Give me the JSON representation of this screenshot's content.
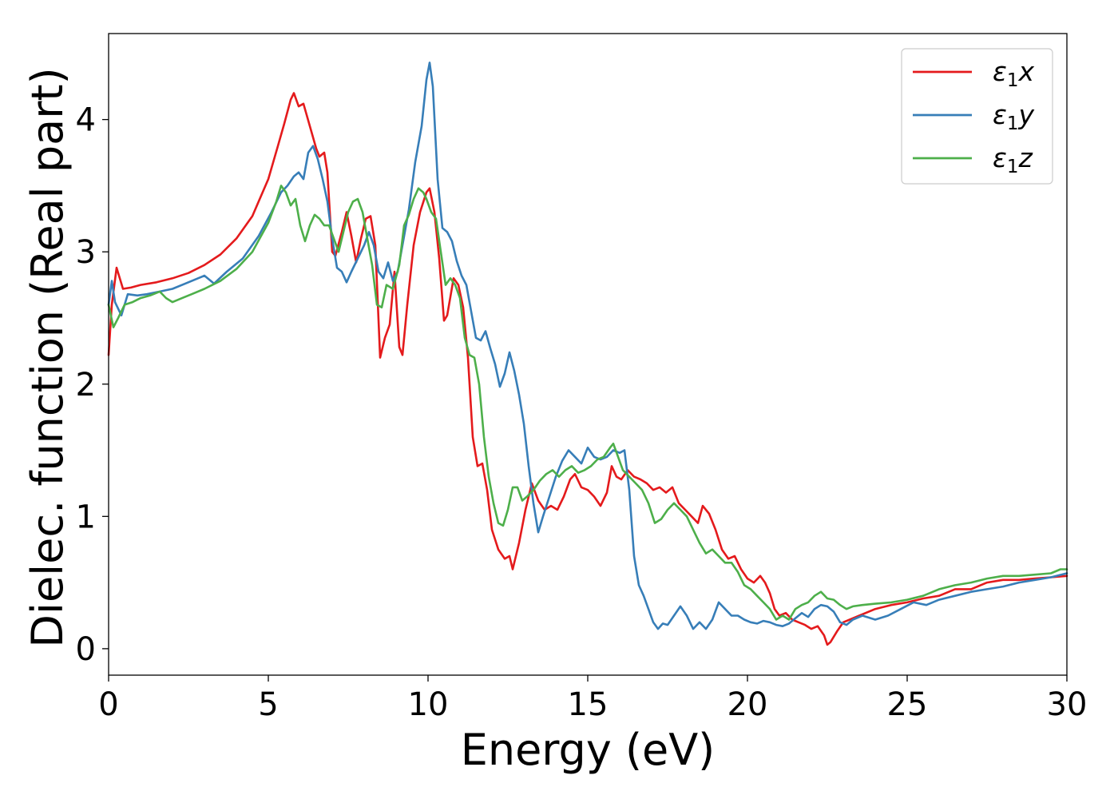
{
  "chart_data": {
    "type": "line",
    "title": "",
    "xlabel": "Energy (eV)",
    "ylabel": "Dielec. function (Real part)",
    "xlim": [
      0,
      30
    ],
    "ylim": [
      -0.2,
      4.65
    ],
    "xticks": [
      0,
      5,
      10,
      15,
      20,
      25,
      30
    ],
    "yticks": [
      0,
      1,
      2,
      3,
      4
    ],
    "grid": false,
    "legend_position": "top-right",
    "series": [
      {
        "name": "ε1x",
        "legend": {
          "symbol": "ε",
          "sub": "1",
          "var": "x"
        },
        "color": "#e41a1c",
        "x": [
          0,
          0.1,
          0.25,
          0.45,
          0.7,
          1,
          1.5,
          2,
          2.5,
          3,
          3.5,
          4,
          4.5,
          5,
          5.3,
          5.5,
          5.7,
          5.8,
          5.95,
          6.1,
          6.3,
          6.5,
          6.6,
          6.75,
          6.85,
          7.0,
          7.1,
          7.3,
          7.45,
          7.6,
          7.75,
          7.9,
          8.05,
          8.2,
          8.35,
          8.5,
          8.65,
          8.8,
          8.95,
          9.1,
          9.2,
          9.35,
          9.55,
          9.75,
          9.95,
          10.05,
          10.2,
          10.35,
          10.5,
          10.6,
          10.8,
          10.95,
          11.1,
          11.25,
          11.4,
          11.55,
          11.7,
          11.85,
          12.0,
          12.2,
          12.4,
          12.55,
          12.65,
          12.85,
          13.05,
          13.25,
          13.45,
          13.65,
          13.85,
          14.05,
          14.25,
          14.45,
          14.6,
          14.8,
          15.0,
          15.2,
          15.4,
          15.6,
          15.75,
          15.9,
          16.05,
          16.25,
          16.45,
          16.65,
          16.85,
          17.05,
          17.25,
          17.45,
          17.65,
          17.85,
          18.05,
          18.25,
          18.45,
          18.6,
          18.8,
          19.0,
          19.2,
          19.4,
          19.6,
          19.8,
          20.0,
          20.2,
          20.4,
          20.55,
          20.7,
          20.85,
          21.0,
          21.2,
          21.4,
          21.6,
          21.8,
          22.0,
          22.2,
          22.4,
          22.5,
          22.6,
          22.8,
          23.0,
          23.2,
          23.5,
          24.0,
          24.5,
          25.0,
          25.5,
          26.0,
          26.5,
          27.0,
          27.5,
          28.0,
          28.5,
          29.0,
          29.5,
          30.0
        ],
        "y": [
          2.22,
          2.6,
          2.88,
          2.72,
          2.73,
          2.75,
          2.77,
          2.8,
          2.84,
          2.9,
          2.98,
          3.1,
          3.27,
          3.55,
          3.8,
          3.97,
          4.15,
          4.2,
          4.1,
          4.12,
          3.95,
          3.78,
          3.72,
          3.75,
          3.6,
          3.0,
          2.97,
          3.15,
          3.3,
          3.12,
          2.92,
          3.1,
          3.25,
          3.27,
          3.05,
          2.2,
          2.35,
          2.45,
          2.85,
          2.28,
          2.22,
          2.6,
          3.05,
          3.3,
          3.45,
          3.48,
          3.3,
          2.95,
          2.48,
          2.52,
          2.8,
          2.75,
          2.58,
          2.2,
          1.6,
          1.38,
          1.4,
          1.2,
          0.9,
          0.75,
          0.68,
          0.7,
          0.6,
          0.8,
          1.05,
          1.25,
          1.12,
          1.05,
          1.08,
          1.05,
          1.15,
          1.28,
          1.32,
          1.22,
          1.2,
          1.15,
          1.08,
          1.18,
          1.38,
          1.3,
          1.28,
          1.35,
          1.3,
          1.28,
          1.25,
          1.2,
          1.22,
          1.18,
          1.22,
          1.1,
          1.05,
          1.0,
          0.95,
          1.08,
          1.02,
          0.9,
          0.75,
          0.68,
          0.7,
          0.6,
          0.53,
          0.5,
          0.55,
          0.5,
          0.42,
          0.3,
          0.25,
          0.27,
          0.22,
          0.2,
          0.18,
          0.15,
          0.17,
          0.1,
          0.03,
          0.05,
          0.13,
          0.2,
          0.22,
          0.25,
          0.3,
          0.33,
          0.35,
          0.38,
          0.4,
          0.45,
          0.45,
          0.5,
          0.52,
          0.52,
          0.53,
          0.54,
          0.55
        ]
      },
      {
        "name": "ε1y",
        "legend": {
          "symbol": "ε",
          "sub": "1",
          "var": "y"
        },
        "color": "#377eb8",
        "x": [
          0,
          0.1,
          0.2,
          0.4,
          0.6,
          0.9,
          1.2,
          1.6,
          2.0,
          2.4,
          2.8,
          3.0,
          3.3,
          3.7,
          4.2,
          4.7,
          5.1,
          5.4,
          5.6,
          5.8,
          5.95,
          6.1,
          6.25,
          6.4,
          6.55,
          6.7,
          6.85,
          7.0,
          7.15,
          7.3,
          7.45,
          7.6,
          7.8,
          8.0,
          8.15,
          8.3,
          8.45,
          8.6,
          8.75,
          8.9,
          9.05,
          9.2,
          9.4,
          9.6,
          9.8,
          9.95,
          10.05,
          10.15,
          10.3,
          10.45,
          10.6,
          10.75,
          10.9,
          11.05,
          11.2,
          11.35,
          11.5,
          11.65,
          11.8,
          11.95,
          12.1,
          12.25,
          12.4,
          12.55,
          12.7,
          12.85,
          13.0,
          13.15,
          13.3,
          13.45,
          13.6,
          13.8,
          14.0,
          14.2,
          14.4,
          14.6,
          14.8,
          15.0,
          15.2,
          15.4,
          15.6,
          15.8,
          16.0,
          16.15,
          16.3,
          16.45,
          16.6,
          16.75,
          16.9,
          17.05,
          17.2,
          17.35,
          17.5,
          17.7,
          17.9,
          18.1,
          18.3,
          18.5,
          18.7,
          18.9,
          19.1,
          19.3,
          19.5,
          19.7,
          19.9,
          20.1,
          20.3,
          20.5,
          20.7,
          20.9,
          21.1,
          21.3,
          21.5,
          21.7,
          21.9,
          22.1,
          22.3,
          22.5,
          22.7,
          22.9,
          23.1,
          23.3,
          23.6,
          24.0,
          24.4,
          24.8,
          25.2,
          25.6,
          26.0,
          26.5,
          27.0,
          27.5,
          28.0,
          28.5,
          29.0,
          29.5,
          30.0
        ],
        "y": [
          2.6,
          2.78,
          2.62,
          2.52,
          2.68,
          2.67,
          2.68,
          2.7,
          2.72,
          2.76,
          2.8,
          2.82,
          2.76,
          2.85,
          2.95,
          3.12,
          3.3,
          3.45,
          3.5,
          3.57,
          3.6,
          3.55,
          3.75,
          3.8,
          3.7,
          3.55,
          3.38,
          3.1,
          2.88,
          2.85,
          2.77,
          2.85,
          2.95,
          3.05,
          3.15,
          3.05,
          2.85,
          2.8,
          2.92,
          2.78,
          2.85,
          3.05,
          3.32,
          3.68,
          3.95,
          4.3,
          4.43,
          4.25,
          3.55,
          3.18,
          3.15,
          3.08,
          2.93,
          2.82,
          2.75,
          2.55,
          2.35,
          2.33,
          2.4,
          2.27,
          2.15,
          1.98,
          2.08,
          2.24,
          2.1,
          1.92,
          1.7,
          1.38,
          1.1,
          0.88,
          1.0,
          1.15,
          1.3,
          1.42,
          1.5,
          1.45,
          1.4,
          1.52,
          1.45,
          1.43,
          1.45,
          1.5,
          1.48,
          1.5,
          1.2,
          0.7,
          0.48,
          0.4,
          0.3,
          0.2,
          0.15,
          0.19,
          0.18,
          0.25,
          0.32,
          0.25,
          0.15,
          0.2,
          0.15,
          0.22,
          0.35,
          0.3,
          0.25,
          0.25,
          0.22,
          0.2,
          0.19,
          0.21,
          0.2,
          0.18,
          0.17,
          0.19,
          0.23,
          0.27,
          0.24,
          0.3,
          0.33,
          0.32,
          0.28,
          0.2,
          0.18,
          0.22,
          0.25,
          0.22,
          0.25,
          0.3,
          0.35,
          0.33,
          0.37,
          0.4,
          0.43,
          0.45,
          0.47,
          0.5,
          0.52,
          0.54,
          0.57
        ]
      },
      {
        "name": "ε1z",
        "legend": {
          "symbol": "ε",
          "sub": "1",
          "var": "z"
        },
        "color": "#4daf4a",
        "x": [
          0,
          0.15,
          0.3,
          0.5,
          0.75,
          1.0,
          1.3,
          1.6,
          1.8,
          2.0,
          2.3,
          2.6,
          3.0,
          3.5,
          4.0,
          4.5,
          5.0,
          5.25,
          5.4,
          5.55,
          5.7,
          5.85,
          6.0,
          6.15,
          6.3,
          6.45,
          6.6,
          6.75,
          6.9,
          7.05,
          7.2,
          7.35,
          7.5,
          7.65,
          7.8,
          7.95,
          8.1,
          8.25,
          8.4,
          8.55,
          8.7,
          8.9,
          9.1,
          9.25,
          9.4,
          9.55,
          9.7,
          9.85,
          9.95,
          10.1,
          10.25,
          10.4,
          10.55,
          10.7,
          10.85,
          11.0,
          11.15,
          11.3,
          11.45,
          11.6,
          11.75,
          11.9,
          12.05,
          12.2,
          12.35,
          12.5,
          12.65,
          12.8,
          12.95,
          13.1,
          13.3,
          13.5,
          13.7,
          13.9,
          14.1,
          14.3,
          14.5,
          14.7,
          14.9,
          15.1,
          15.3,
          15.5,
          15.7,
          15.8,
          15.95,
          16.1,
          16.3,
          16.5,
          16.7,
          16.9,
          17.1,
          17.3,
          17.5,
          17.7,
          17.9,
          18.1,
          18.3,
          18.5,
          18.7,
          18.9,
          19.1,
          19.3,
          19.5,
          19.7,
          19.9,
          20.1,
          20.3,
          20.5,
          20.7,
          20.9,
          21.1,
          21.3,
          21.5,
          21.7,
          21.9,
          22.1,
          22.3,
          22.5,
          22.7,
          22.9,
          23.1,
          23.3,
          23.6,
          24.0,
          24.5,
          25.0,
          25.5,
          26.0,
          26.5,
          27.0,
          27.5,
          28.0,
          28.5,
          29.0,
          29.5,
          29.8,
          30.0
        ],
        "y": [
          2.6,
          2.43,
          2.5,
          2.6,
          2.62,
          2.65,
          2.67,
          2.7,
          2.65,
          2.62,
          2.65,
          2.68,
          2.72,
          2.78,
          2.87,
          3.0,
          3.22,
          3.38,
          3.5,
          3.45,
          3.35,
          3.4,
          3.2,
          3.08,
          3.2,
          3.28,
          3.25,
          3.2,
          3.2,
          3.1,
          3.0,
          3.15,
          3.3,
          3.38,
          3.4,
          3.3,
          3.1,
          2.9,
          2.6,
          2.58,
          2.75,
          2.72,
          2.9,
          3.2,
          3.28,
          3.4,
          3.48,
          3.45,
          3.4,
          3.3,
          3.25,
          3.0,
          2.75,
          2.8,
          2.75,
          2.65,
          2.35,
          2.22,
          2.2,
          2.0,
          1.6,
          1.3,
          1.1,
          0.95,
          0.93,
          1.05,
          1.22,
          1.22,
          1.12,
          1.15,
          1.2,
          1.27,
          1.32,
          1.35,
          1.3,
          1.35,
          1.38,
          1.33,
          1.35,
          1.38,
          1.43,
          1.45,
          1.52,
          1.55,
          1.45,
          1.35,
          1.3,
          1.25,
          1.2,
          1.1,
          0.95,
          0.98,
          1.05,
          1.1,
          1.05,
          1.0,
          0.9,
          0.8,
          0.72,
          0.75,
          0.7,
          0.65,
          0.65,
          0.58,
          0.48,
          0.45,
          0.4,
          0.35,
          0.3,
          0.22,
          0.25,
          0.22,
          0.3,
          0.33,
          0.35,
          0.4,
          0.43,
          0.38,
          0.37,
          0.33,
          0.3,
          0.32,
          0.33,
          0.34,
          0.35,
          0.37,
          0.4,
          0.45,
          0.48,
          0.5,
          0.53,
          0.55,
          0.55,
          0.56,
          0.57,
          0.6,
          0.6
        ]
      }
    ]
  }
}
